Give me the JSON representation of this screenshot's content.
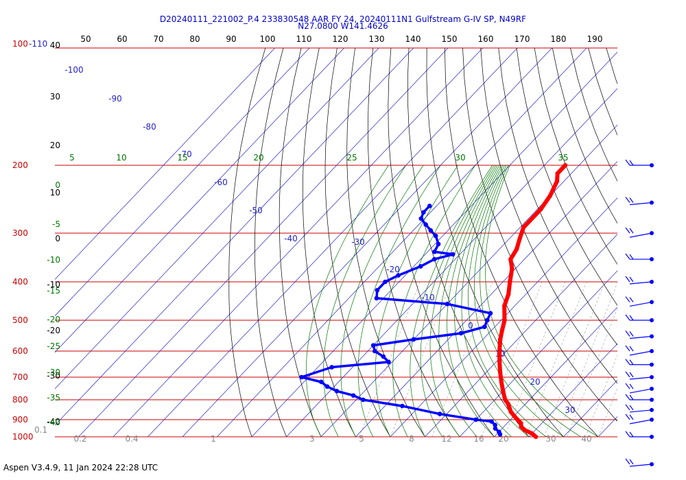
{
  "header": {
    "line1": "D20240111_221002_P.4 233830548 AAR FY 24, 20240111N1 Gulfstream G-IV SP, N49RF",
    "line2": "N27.0800 W141.4626"
  },
  "footer": "Aspen V3.4.9, 11 Jan 2024  22:28 UTC",
  "chart_data": {
    "type": "skew-t",
    "pressure_levels": [
      "100",
      "200",
      "300",
      "400",
      "500",
      "600",
      "700",
      "800",
      "900",
      "1000"
    ],
    "pressure_top_suffix": "-110",
    "top_axis_ticks": [
      "50",
      "60",
      "70",
      "80",
      "90",
      "100",
      "110",
      "120",
      "130",
      "140",
      "150",
      "160",
      "170",
      "180",
      "190"
    ],
    "left_altitude_labels": [
      "40",
      "30",
      "20",
      "10",
      "0",
      "-10",
      "-20",
      "-30",
      "-40"
    ],
    "left_green_labels": [
      "0",
      "-5",
      "-10",
      "-15",
      "-20",
      "-25",
      "-30",
      "-35",
      "-40"
    ],
    "isotherm_labels": [
      "-100",
      "-90",
      "-80",
      "-70",
      "-60",
      "-50",
      "-40",
      "-30",
      "-20",
      "-10",
      "0",
      "10",
      "20",
      "30"
    ],
    "adiabat_labels": [
      "5",
      "10",
      "15",
      "20",
      "25",
      "30",
      "35"
    ],
    "mixing_ratio_labels": [
      "0.2",
      "0.4",
      "1",
      "3",
      "5",
      "8",
      "12",
      "16",
      "20",
      "30",
      "40"
    ],
    "bottom_left_label": "0.1",
    "temperature_profile": [
      [
        200,
        -44
      ],
      [
        210,
        -44
      ],
      [
        220,
        -42
      ],
      [
        240,
        -40
      ],
      [
        260,
        -39
      ],
      [
        290,
        -39
      ],
      [
        310,
        -37
      ],
      [
        330,
        -35
      ],
      [
        350,
        -34
      ],
      [
        370,
        -31
      ],
      [
        400,
        -28
      ],
      [
        430,
        -25
      ],
      [
        460,
        -23
      ],
      [
        500,
        -19
      ],
      [
        530,
        -17
      ],
      [
        560,
        -15
      ],
      [
        600,
        -12
      ],
      [
        640,
        -9
      ],
      [
        680,
        -6
      ],
      [
        720,
        -3
      ],
      [
        760,
        0
      ],
      [
        800,
        3
      ],
      [
        820,
        5
      ],
      [
        860,
        8
      ],
      [
        880,
        10
      ],
      [
        900,
        12
      ],
      [
        920,
        14
      ],
      [
        940,
        15
      ],
      [
        960,
        17
      ],
      [
        980,
        20
      ],
      [
        1000,
        22
      ]
    ],
    "dewpoint_profile": [
      [
        255,
        -72
      ],
      [
        265,
        -72
      ],
      [
        275,
        -71
      ],
      [
        285,
        -68
      ],
      [
        295,
        -65
      ],
      [
        305,
        -62
      ],
      [
        320,
        -59
      ],
      [
        335,
        -58
      ],
      [
        340,
        -52
      ],
      [
        350,
        -56
      ],
      [
        365,
        -58
      ],
      [
        385,
        -62
      ],
      [
        400,
        -64
      ],
      [
        420,
        -64
      ],
      [
        440,
        -62
      ],
      [
        455,
        -40
      ],
      [
        480,
        -25
      ],
      [
        500,
        -24
      ],
      [
        520,
        -23
      ],
      [
        540,
        -28
      ],
      [
        560,
        -40
      ],
      [
        580,
        -50
      ],
      [
        600,
        -48
      ],
      [
        620,
        -44
      ],
      [
        640,
        -41
      ],
      [
        660,
        -56
      ],
      [
        700,
        -62
      ],
      [
        720,
        -55
      ],
      [
        740,
        -52
      ],
      [
        760,
        -48
      ],
      [
        780,
        -42
      ],
      [
        800,
        -38
      ],
      [
        830,
        -25
      ],
      [
        870,
        -12
      ],
      [
        900,
        0
      ],
      [
        910,
        5
      ],
      [
        930,
        7
      ],
      [
        950,
        8
      ],
      [
        970,
        10
      ],
      [
        985,
        11
      ]
    ],
    "wind_barb_pressures": [
      "200",
      "250",
      "300",
      "350",
      "400",
      "450",
      "500",
      "550",
      "600",
      "650",
      "700",
      "750",
      "800",
      "850",
      "900",
      "950",
      "1000"
    ]
  }
}
